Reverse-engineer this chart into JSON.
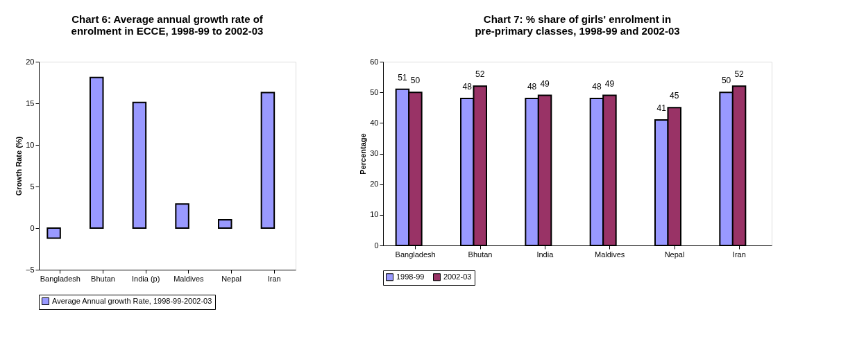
{
  "chart_data": [
    {
      "type": "bar",
      "title": "Chart 6: Average annual growth rate of enrolment in ECCE, 1998-99 to 2002-03",
      "ylabel": "Growth Rate (%)",
      "categories": [
        "Bangladesh",
        "Bhutan",
        "India (p)",
        "Maldives",
        "Nepal",
        "Iran"
      ],
      "series": [
        {
          "name": "Average Annual growth Rate, 1998-99-2002-03",
          "color": "#9999ff",
          "values": [
            -1.2,
            18.1,
            15.1,
            2.9,
            1.0,
            16.3
          ]
        }
      ],
      "ylim": [
        -5,
        20
      ],
      "yticks": [
        -5,
        0,
        5,
        10,
        15,
        20
      ],
      "grid": false,
      "legend": "bottom"
    },
    {
      "type": "bar",
      "title": "Chart 7: % share of girls' enrolment in pre-primary classes, 1998-99 and 2002-03",
      "ylabel": "Percentage",
      "categories": [
        "Bangladesh",
        "Bhutan",
        "India",
        "Maldives",
        "Nepal",
        "Iran"
      ],
      "series": [
        {
          "name": "1998-99",
          "color": "#9999ff",
          "values": [
            51,
            48,
            48,
            48,
            41,
            50
          ]
        },
        {
          "name": "2002-03",
          "color": "#993366",
          "values": [
            50,
            52,
            49,
            49,
            45,
            52
          ]
        }
      ],
      "ylim": [
        0,
        60
      ],
      "yticks": [
        0,
        10,
        20,
        30,
        40,
        50,
        60
      ],
      "grid": false,
      "legend": "bottom",
      "data_labels": true
    }
  ]
}
